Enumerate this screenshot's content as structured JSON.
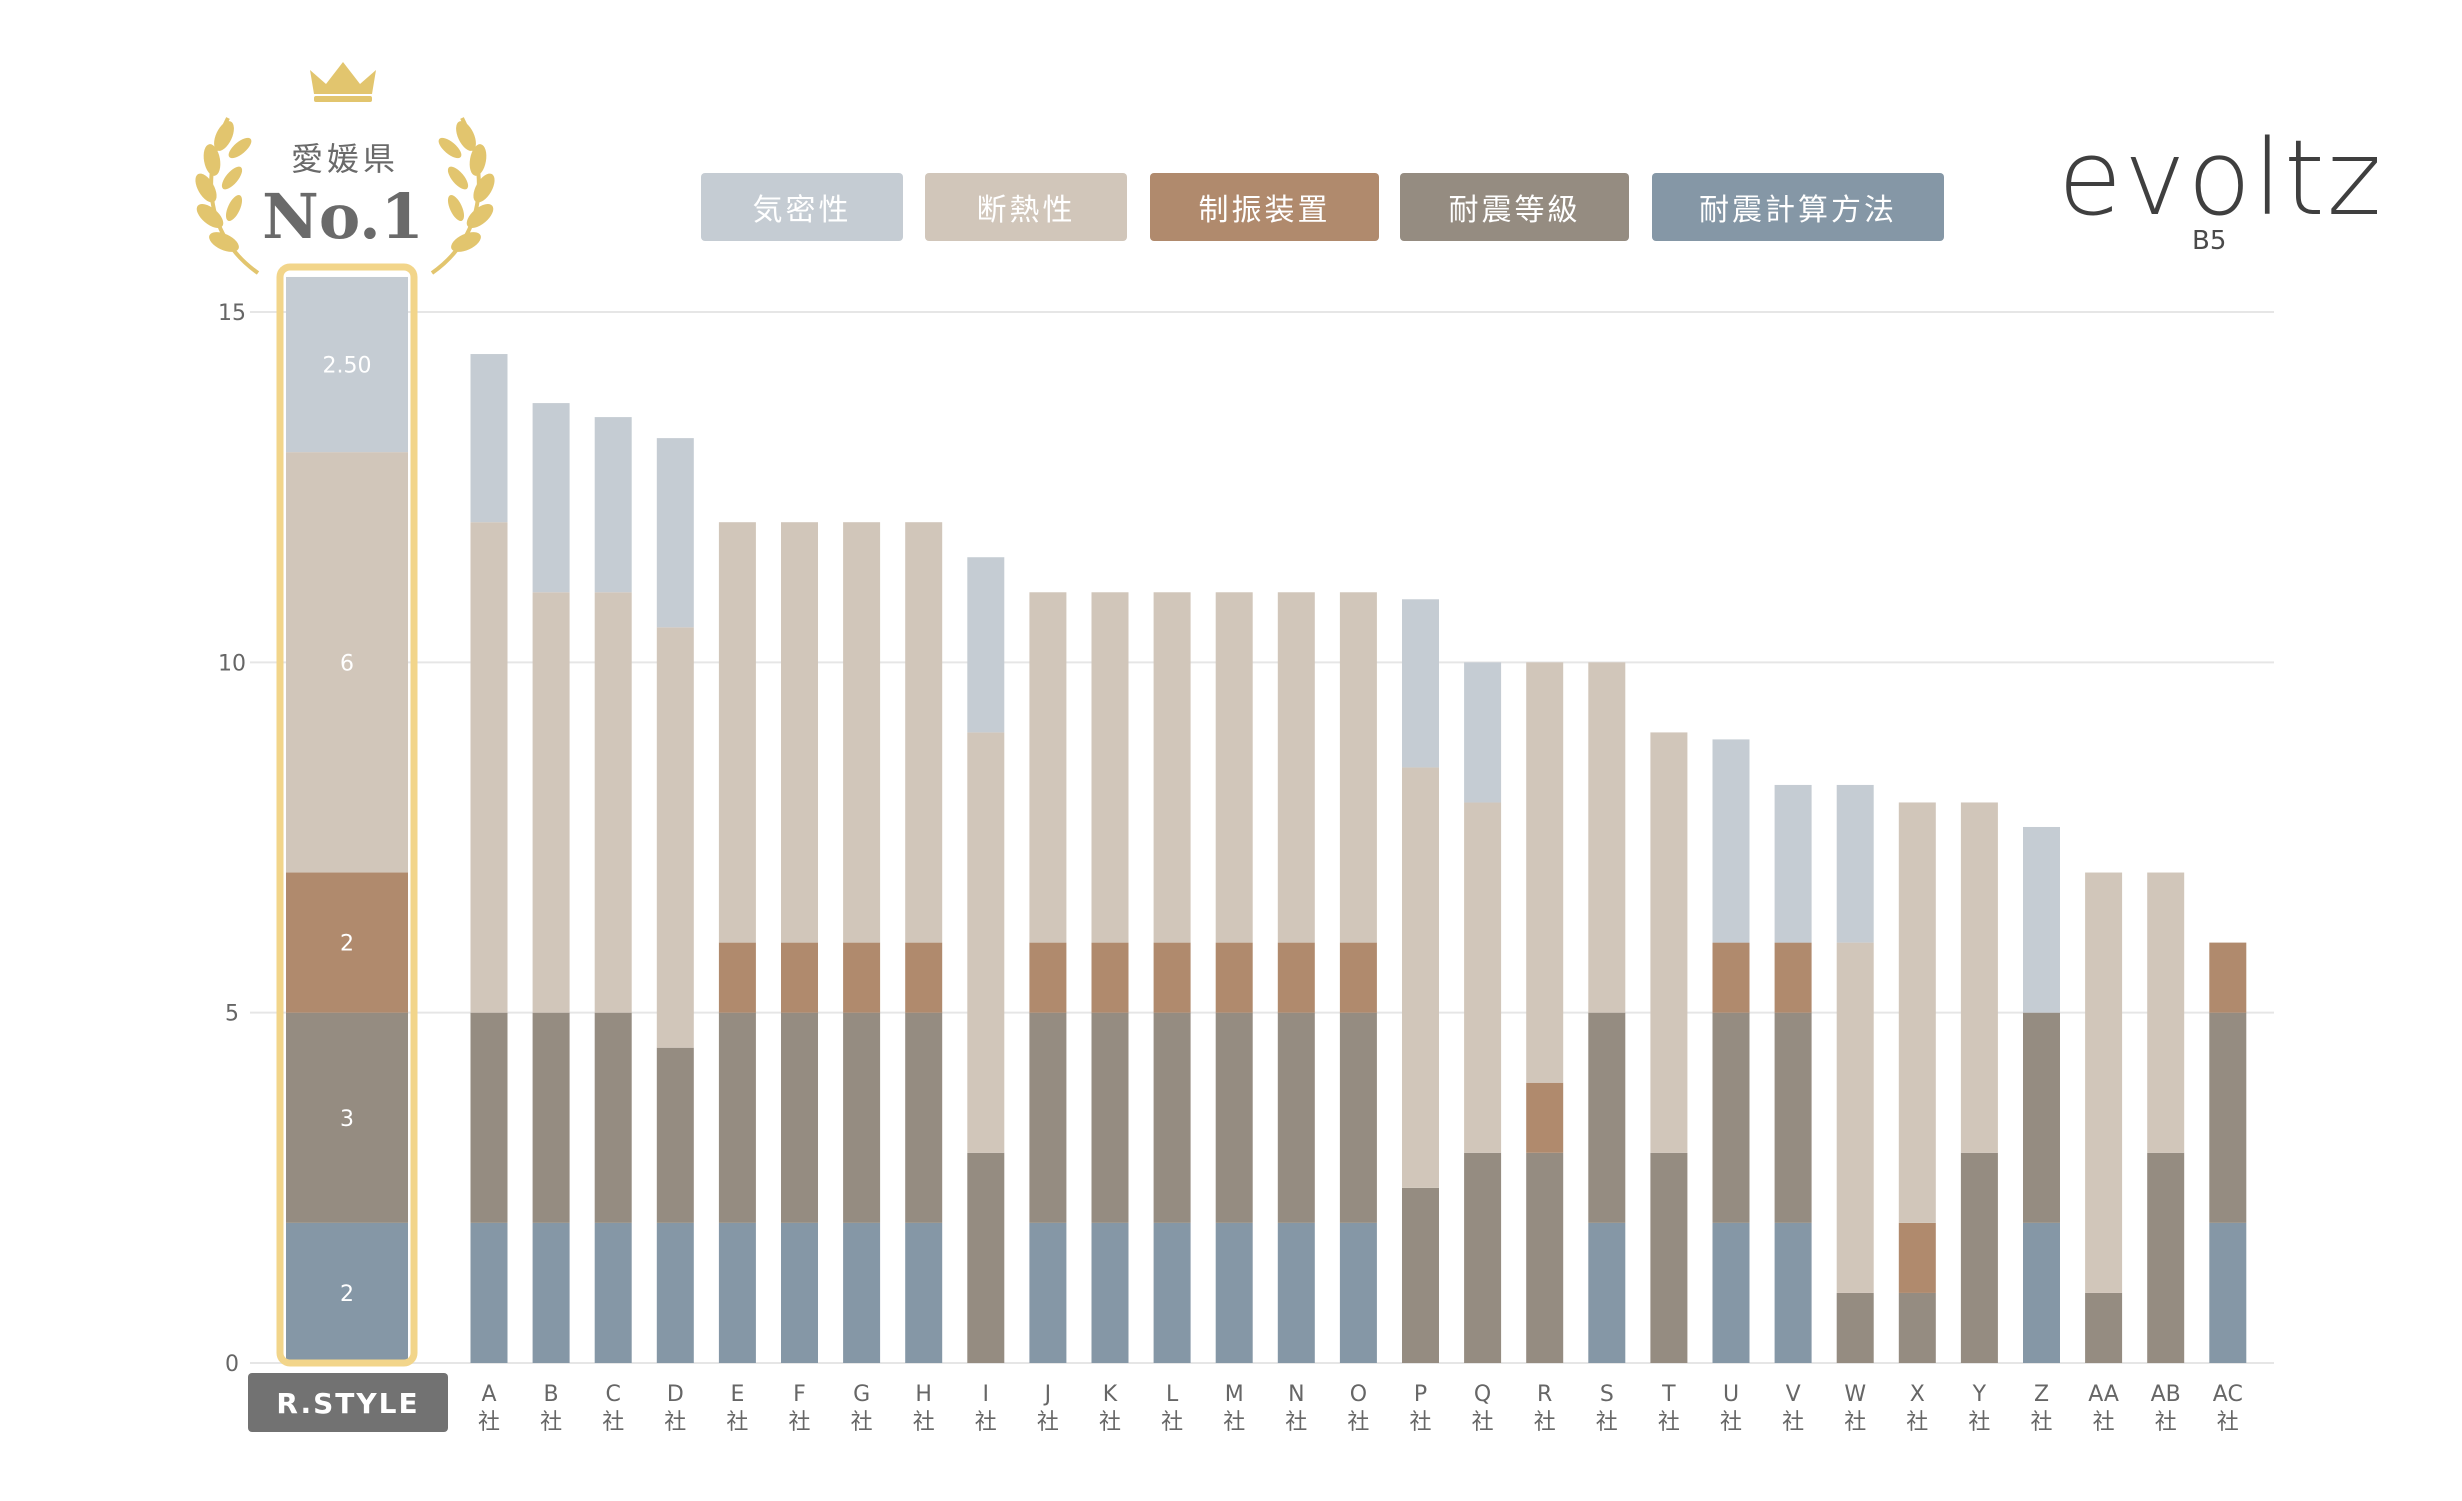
{
  "badge": {
    "prefecture": "愛媛県",
    "rank": "No.1"
  },
  "logo": {
    "name": "evoltz",
    "model": "B5"
  },
  "colors": {
    "airtight": "#c5ccd3",
    "insulation": "#d1c6ba",
    "damper": "#b08a6d",
    "seismic_grade": "#958c81",
    "seismic_calc": "#8597a6",
    "highlight": "#f2d58a",
    "label_bg": "#727272",
    "axis_text": "#666666",
    "grid": "#e6e6e6"
  },
  "chart_data": {
    "type": "bar",
    "stacked": true,
    "ylim": [
      0,
      15
    ],
    "yticks": [
      0,
      5,
      10,
      15
    ],
    "legend": [
      "気密性",
      "断熱性",
      "制振装置",
      "耐震等級",
      "耐震計算方法"
    ],
    "legend_position": "top",
    "categories": [
      "R.STYLE",
      "A\n社",
      "B\n社",
      "C\n社",
      "D\n社",
      "E\n社",
      "F\n社",
      "G\n社",
      "H\n社",
      "I\n社",
      "J\n社",
      "K\n社",
      "L\n社",
      "M\n社",
      "N\n社",
      "O\n社",
      "P\n社",
      "Q\n社",
      "R\n社",
      "S\n社",
      "T\n社",
      "U\n社",
      "V\n社",
      "W\n社",
      "X\n社",
      "Y\n社",
      "Z\n社",
      "AA\n社",
      "AB\n社",
      "AC\n社"
    ],
    "series": [
      {
        "name": "耐震計算方法",
        "values": [
          2,
          2,
          2,
          2,
          2,
          2,
          2,
          2,
          2,
          0,
          2,
          2,
          2,
          2,
          2,
          2,
          0,
          0,
          0,
          2,
          0,
          2,
          2,
          0,
          0,
          0,
          2,
          0,
          0,
          2
        ]
      },
      {
        "name": "耐震等級",
        "values": [
          3,
          3,
          3,
          3,
          2.5,
          3,
          3,
          3,
          3,
          3,
          3,
          3,
          3,
          3,
          3,
          3,
          2.5,
          3,
          3,
          3,
          3,
          3,
          3,
          1,
          1,
          3,
          3,
          1,
          3,
          3
        ]
      },
      {
        "name": "制振装置",
        "values": [
          2,
          0,
          0,
          0,
          0,
          1,
          1,
          1,
          1,
          0,
          1,
          1,
          1,
          1,
          1,
          1,
          0,
          0,
          1,
          0,
          0,
          1,
          1,
          0,
          1,
          0,
          0,
          0,
          0,
          1
        ]
      },
      {
        "name": "断熱性",
        "values": [
          6,
          7,
          6,
          6,
          6,
          6,
          6,
          6,
          6,
          6,
          5,
          5,
          5,
          5,
          5,
          5,
          6,
          5,
          6,
          5,
          6,
          0,
          0,
          5,
          6,
          5,
          0,
          6,
          4,
          0
        ]
      },
      {
        "name": "気密性",
        "values": [
          2.5,
          2.4,
          2.7,
          2.5,
          2.7,
          0,
          0,
          0,
          0,
          2.5,
          0,
          0,
          0,
          0,
          0,
          0,
          2.4,
          2,
          0,
          0,
          0,
          2.9,
          2.25,
          2.25,
          0,
          0,
          2.65,
          0,
          0,
          0
        ]
      }
    ],
    "data_labels": {
      "R.STYLE": [
        "2",
        "3",
        "2",
        "6",
        "2.50"
      ]
    },
    "highlighted_category": "R.STYLE"
  }
}
